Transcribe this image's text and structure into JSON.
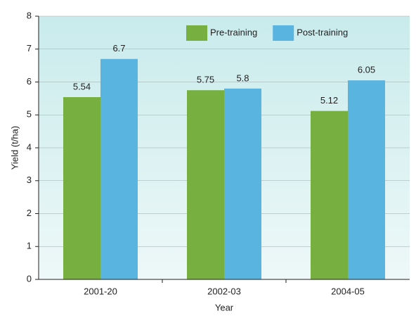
{
  "chart_data": {
    "type": "bar",
    "x_label": "Year",
    "y_label": "Yield (t/ha)",
    "categories": [
      "2001-20",
      "2002-03",
      "2004-05"
    ],
    "series": [
      {
        "name": "Pre-training",
        "color": "#77b041",
        "values": [
          5.54,
          5.75,
          5.12
        ]
      },
      {
        "name": "Post-training",
        "color": "#5ab4e0",
        "values": [
          6.7,
          5.8,
          6.05
        ]
      }
    ],
    "ylim": [
      0,
      8
    ],
    "yticks": [
      0,
      1,
      2,
      3,
      4,
      5,
      6,
      7,
      8
    ],
    "grid": true,
    "legend": "top-right"
  }
}
